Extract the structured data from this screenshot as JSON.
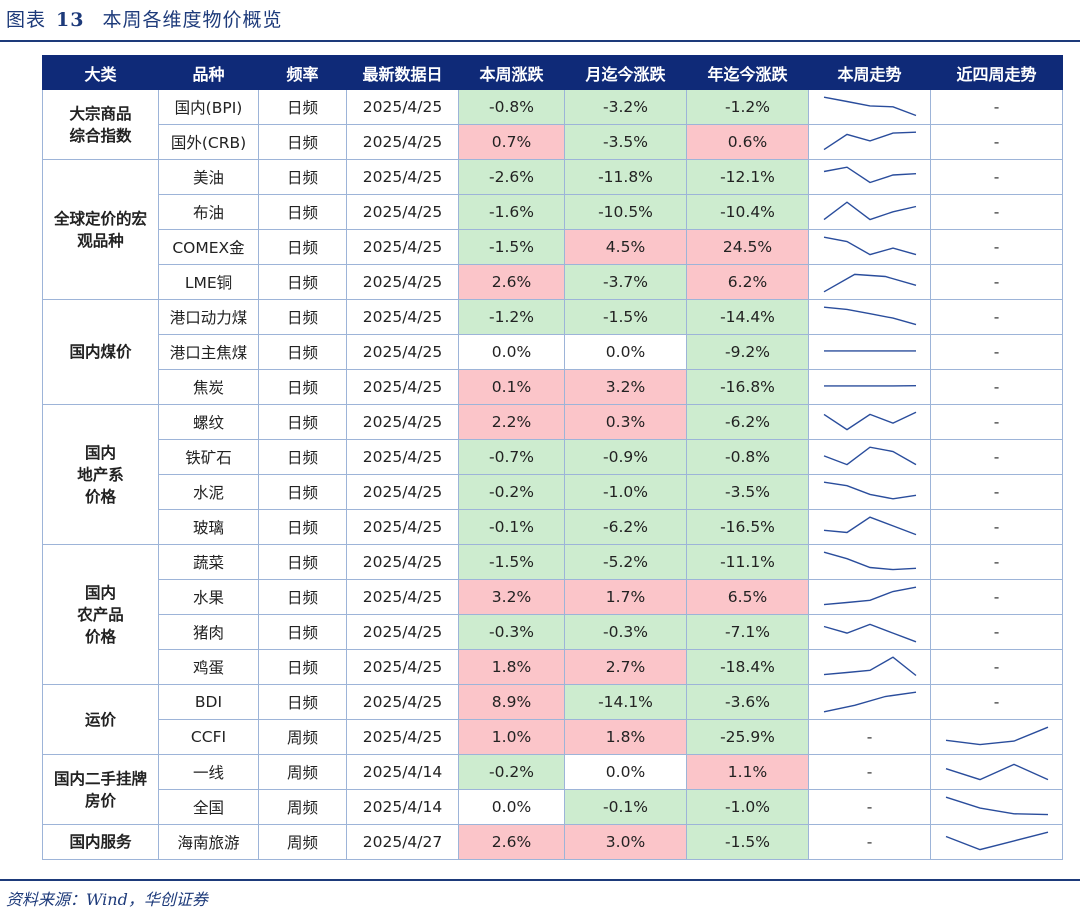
{
  "title": {
    "prefix": "图表",
    "number": "13",
    "text": "本周各维度物价概览"
  },
  "source": "资料来源：Wind，华创证券",
  "colors": {
    "header_bg": "#0f2a78",
    "rise": "#fbc5c9",
    "fall": "#cdeccf",
    "line": "#2a4d9c"
  },
  "columns": [
    "大类",
    "品种",
    "频率",
    "最新数据日",
    "本周涨跌",
    "月迄今涨跌",
    "年迄今涨跌",
    "本周走势",
    "近四周走势"
  ],
  "groups": [
    {
      "name": "大宗商品\n综合指数",
      "rows": [
        {
          "item": "国内(BPI)",
          "freq": "日频",
          "date": "2025/4/25",
          "week": "-0.8%",
          "mtd": "-3.2%",
          "ytd": "-1.2%",
          "week_trend": [
            5,
            4,
            3,
            2.8,
            0.8
          ],
          "four_week": "-"
        },
        {
          "item": "国外(CRB)",
          "freq": "日频",
          "date": "2025/4/25",
          "week": "0.7%",
          "mtd": "-3.5%",
          "ytd": "0.6%",
          "week_trend": [
            1,
            4.5,
            3,
            4.8,
            5
          ],
          "four_week": "-"
        }
      ]
    },
    {
      "name": "全球定价的宏\n观品种",
      "rows": [
        {
          "item": "美油",
          "freq": "日频",
          "date": "2025/4/25",
          "week": "-2.6%",
          "mtd": "-11.8%",
          "ytd": "-12.1%",
          "week_trend": [
            4,
            5,
            1.5,
            3.2,
            3.5
          ],
          "four_week": "-"
        },
        {
          "item": "布油",
          "freq": "日频",
          "date": "2025/4/25",
          "week": "-1.6%",
          "mtd": "-10.5%",
          "ytd": "-10.4%",
          "week_trend": [
            1,
            5,
            1,
            2.8,
            4
          ],
          "four_week": "-"
        },
        {
          "item": "COMEX金",
          "freq": "日频",
          "date": "2025/4/25",
          "week": "-1.5%",
          "mtd": "4.5%",
          "ytd": "24.5%",
          "week_trend": [
            5,
            4,
            1,
            2.5,
            1
          ],
          "four_week": "-"
        },
        {
          "item": "LME铜",
          "freq": "日频",
          "date": "2025/4/25",
          "week": "2.6%",
          "mtd": "-3.7%",
          "ytd": "6.2%",
          "week_trend": [
            0.5,
            4.5,
            4,
            2
          ],
          "four_week": "-"
        }
      ]
    },
    {
      "name": "国内煤价",
      "rows": [
        {
          "item": "港口动力煤",
          "freq": "日频",
          "date": "2025/4/25",
          "week": "-1.2%",
          "mtd": "-1.5%",
          "ytd": "-14.4%",
          "week_trend": [
            5,
            4.5,
            3.5,
            2.5,
            1
          ],
          "four_week": "-"
        },
        {
          "item": "港口主焦煤",
          "freq": "日频",
          "date": "2025/4/25",
          "week": "0.0%",
          "mtd": "0.0%",
          "ytd": "-9.2%",
          "week_trend": [
            3,
            3,
            3,
            3,
            3
          ],
          "four_week": "-"
        },
        {
          "item": "焦炭",
          "freq": "日频",
          "date": "2025/4/25",
          "week": "0.1%",
          "mtd": "3.2%",
          "ytd": "-16.8%",
          "week_trend": [
            3,
            3,
            3,
            3,
            3.05
          ],
          "four_week": "-"
        }
      ]
    },
    {
      "name": "国内\n地产系\n价格",
      "rows": [
        {
          "item": "螺纹",
          "freq": "日频",
          "date": "2025/4/25",
          "week": "2.2%",
          "mtd": "0.3%",
          "ytd": "-6.2%",
          "week_trend": [
            4.5,
            1,
            4.5,
            2.5,
            5
          ],
          "four_week": "-"
        },
        {
          "item": "铁矿石",
          "freq": "日频",
          "date": "2025/4/25",
          "week": "-0.7%",
          "mtd": "-0.9%",
          "ytd": "-0.8%",
          "week_trend": [
            3,
            1,
            5,
            4,
            1
          ],
          "four_week": "-"
        },
        {
          "item": "水泥",
          "freq": "日频",
          "date": "2025/4/25",
          "week": "-0.2%",
          "mtd": "-1.0%",
          "ytd": "-3.5%",
          "week_trend": [
            5,
            4.2,
            2.2,
            1.2,
            2
          ],
          "four_week": "-"
        },
        {
          "item": "玻璃",
          "freq": "日频",
          "date": "2025/4/25",
          "week": "-0.1%",
          "mtd": "-6.2%",
          "ytd": "-16.5%",
          "week_trend": [
            2,
            1.5,
            5,
            3,
            1
          ],
          "four_week": "-"
        }
      ]
    },
    {
      "name": "国内\n农产品\n价格",
      "rows": [
        {
          "item": "蔬菜",
          "freq": "日频",
          "date": "2025/4/25",
          "week": "-1.5%",
          "mtd": "-5.2%",
          "ytd": "-11.1%",
          "week_trend": [
            5,
            3.5,
            1.5,
            1,
            1.3
          ],
          "four_week": "-"
        },
        {
          "item": "水果",
          "freq": "日频",
          "date": "2025/4/25",
          "week": "3.2%",
          "mtd": "1.7%",
          "ytd": "6.5%",
          "week_trend": [
            1,
            1.5,
            2,
            4,
            5
          ],
          "four_week": "-"
        },
        {
          "item": "猪肉",
          "freq": "日频",
          "date": "2025/4/25",
          "week": "-0.3%",
          "mtd": "-0.3%",
          "ytd": "-7.1%",
          "week_trend": [
            4,
            2.5,
            4.5,
            2.5,
            0.5
          ],
          "four_week": "-"
        },
        {
          "item": "鸡蛋",
          "freq": "日频",
          "date": "2025/4/25",
          "week": "1.8%",
          "mtd": "2.7%",
          "ytd": "-18.4%",
          "week_trend": [
            1,
            1.5,
            2,
            5,
            0.8
          ],
          "four_week": "-"
        }
      ]
    },
    {
      "name": "运价",
      "rows": [
        {
          "item": "BDI",
          "freq": "日频",
          "date": "2025/4/25",
          "week": "8.9%",
          "mtd": "-14.1%",
          "ytd": "-3.6%",
          "week_trend": [
            0.5,
            2,
            4,
            5
          ],
          "four_week": "-"
        },
        {
          "item": "CCFI",
          "freq": "周频",
          "date": "2025/4/25",
          "week": "1.0%",
          "mtd": "1.8%",
          "ytd": "-25.9%",
          "week_trend": "-",
          "four_week": [
            2,
            1,
            1.8,
            5
          ]
        }
      ]
    },
    {
      "name": "国内二手挂牌\n房价",
      "rows": [
        {
          "item": "一线",
          "freq": "周频",
          "date": "2025/4/14",
          "week": "-0.2%",
          "mtd": "0.0%",
          "ytd": "1.1%",
          "week_trend": "-",
          "four_week": [
            3.5,
            1,
            4.5,
            1
          ]
        },
        {
          "item": "全国",
          "freq": "周频",
          "date": "2025/4/14",
          "week": "0.0%",
          "mtd": "-0.1%",
          "ytd": "-1.0%",
          "week_trend": "-",
          "four_week": [
            5,
            2.5,
            1.2,
            1
          ]
        }
      ]
    },
    {
      "name": "国内服务",
      "rows": [
        {
          "item": "海南旅游",
          "freq": "周频",
          "date": "2025/4/27",
          "week": "2.6%",
          "mtd": "3.0%",
          "ytd": "-1.5%",
          "week_trend": "-",
          "four_week": [
            4,
            1,
            3,
            5
          ]
        }
      ]
    }
  ]
}
